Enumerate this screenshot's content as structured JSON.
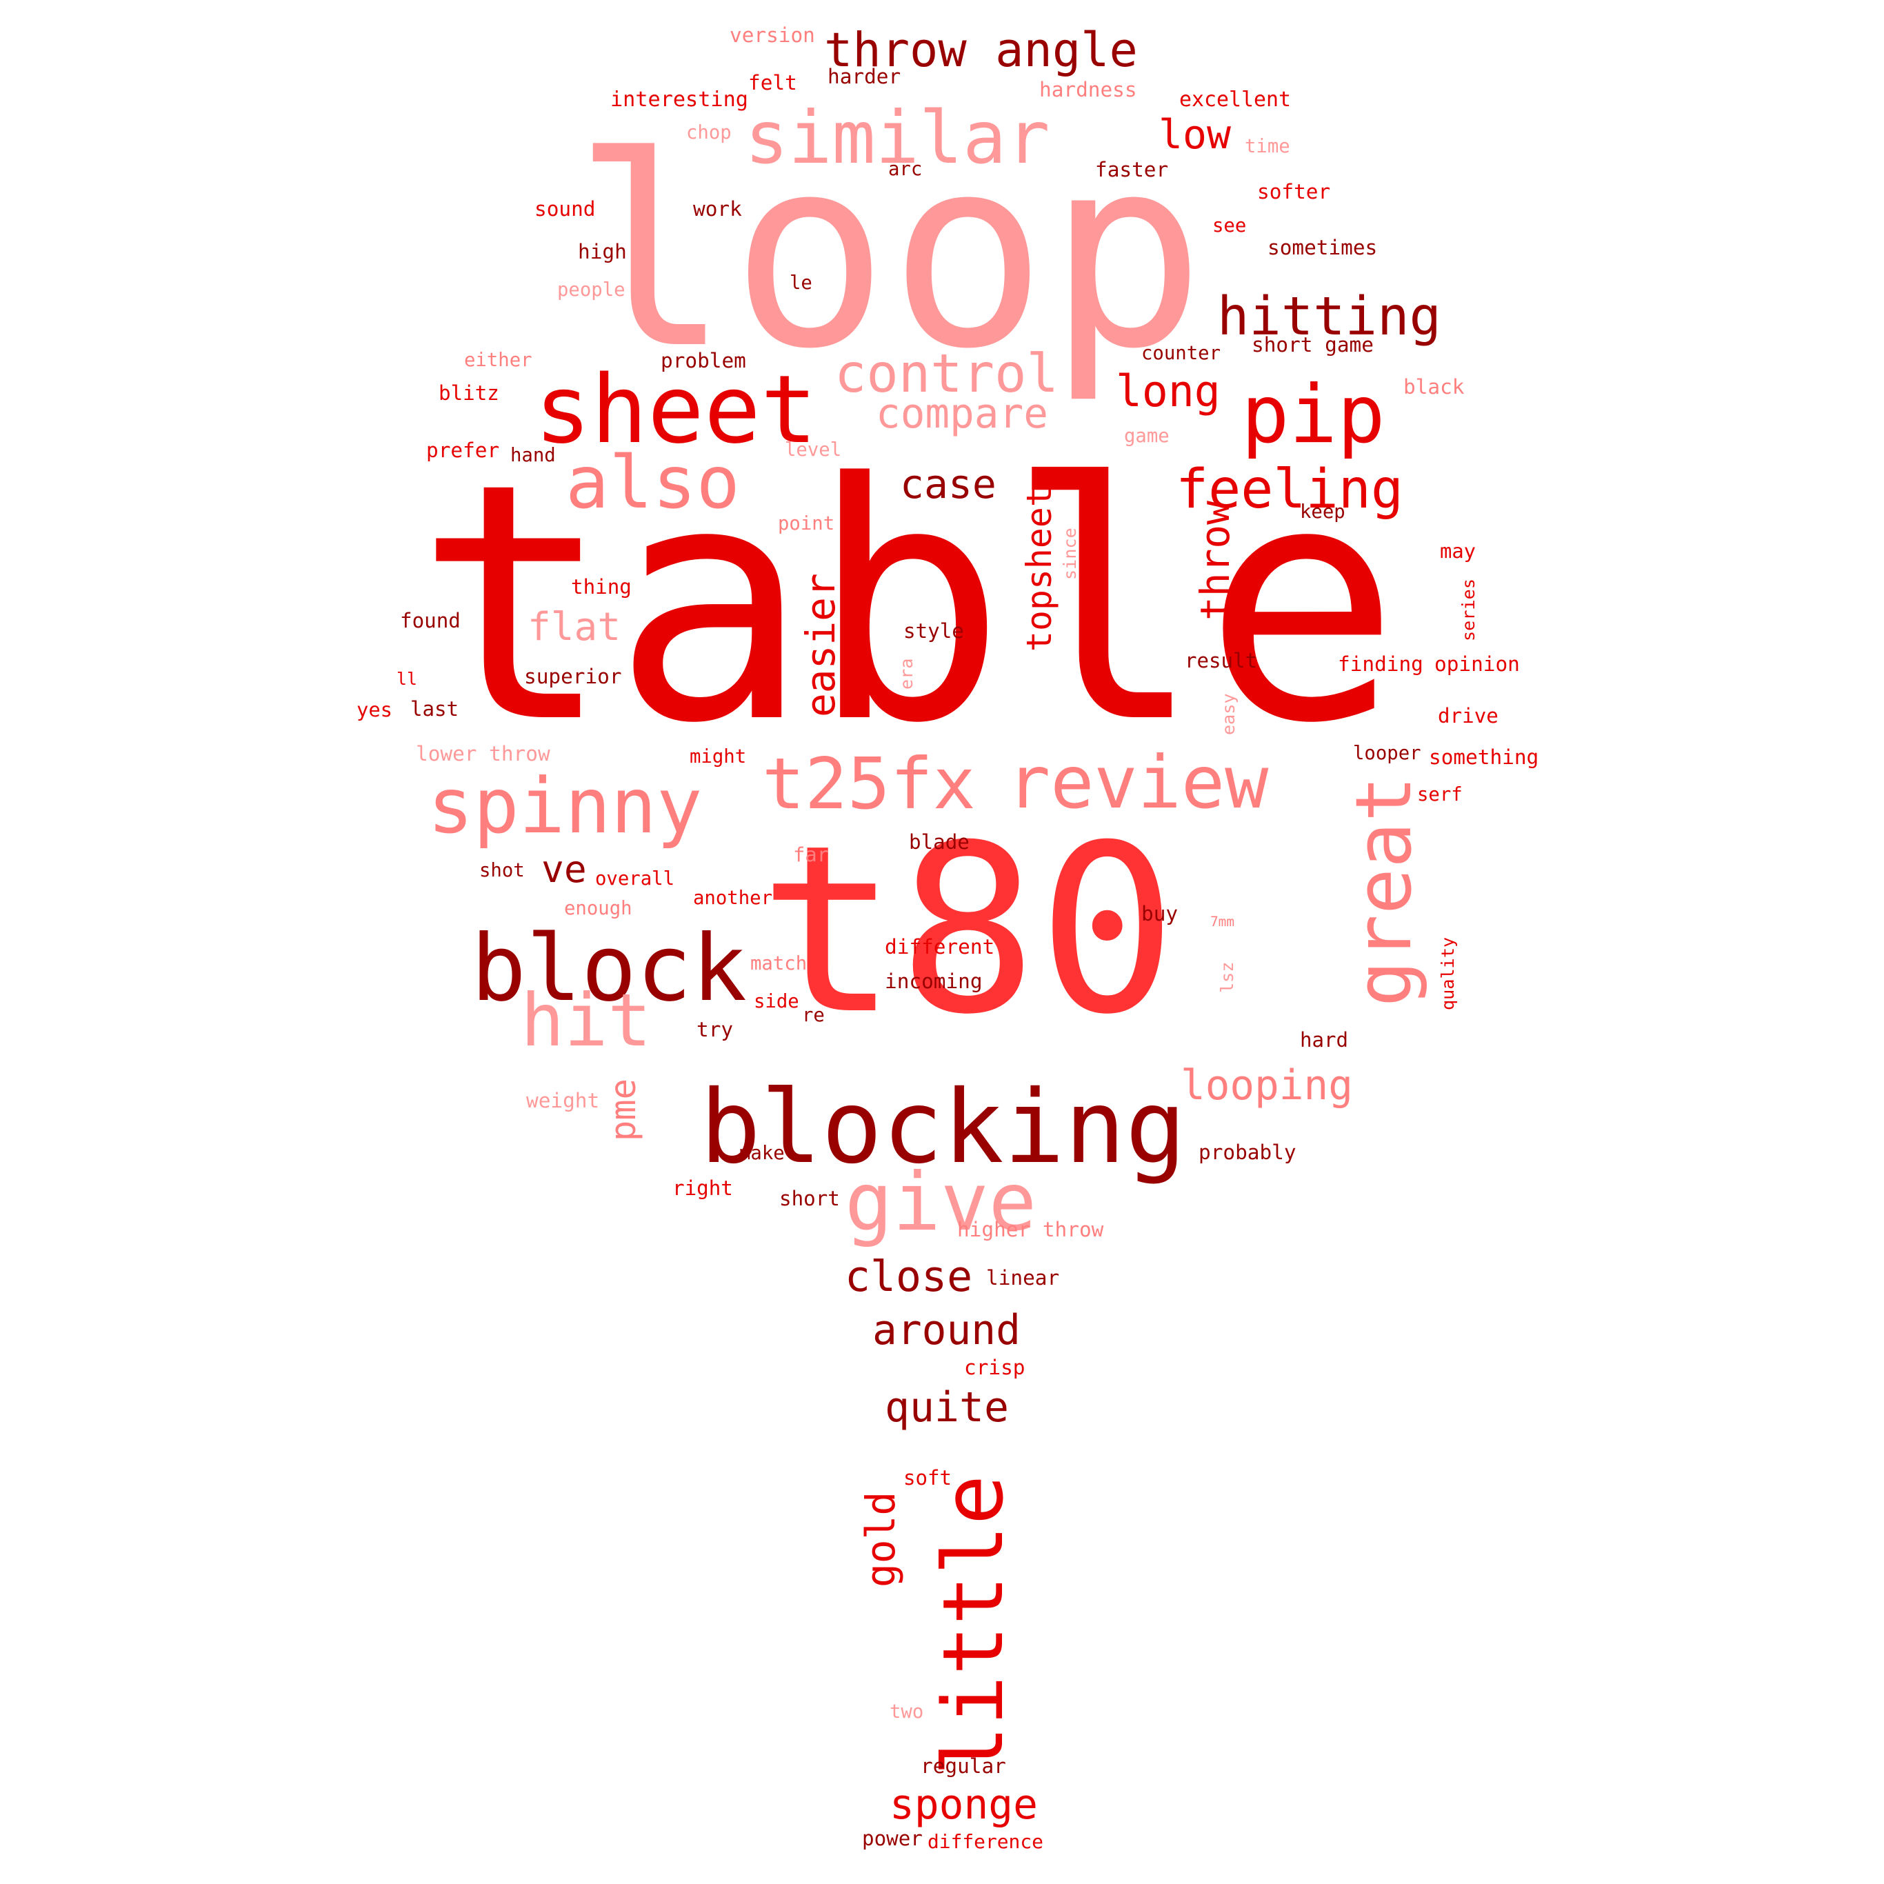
{
  "colors": {
    "dark_red": "#990000",
    "red": "#e60000",
    "bright_red": "#ff3333",
    "salmon": "#ff7f7f",
    "light_pink": "#ff9999"
  },
  "words": [
    {
      "text": "table",
      "color": "red"
    },
    {
      "text": "loop",
      "color": "light_pink"
    },
    {
      "text": "t80",
      "color": "bright_red"
    },
    {
      "text": "blocking",
      "color": "dark_red"
    },
    {
      "text": "block",
      "color": "dark_red"
    },
    {
      "text": "sheet",
      "color": "red"
    },
    {
      "text": "similar",
      "color": "light_pink"
    },
    {
      "text": "pip",
      "color": "red"
    },
    {
      "text": "review",
      "color": "salmon"
    },
    {
      "text": "spinny",
      "color": "salmon"
    },
    {
      "text": "t25fx",
      "color": "salmon"
    },
    {
      "text": "also",
      "color": "salmon"
    },
    {
      "text": "hit",
      "color": "light_pink"
    },
    {
      "text": "give",
      "color": "light_pink"
    },
    {
      "text": "great",
      "color": "salmon"
    },
    {
      "text": "little",
      "color": "red"
    },
    {
      "text": "throw angle",
      "color": "dark_red"
    },
    {
      "text": "control",
      "color": "light_pink"
    },
    {
      "text": "hitting",
      "color": "dark_red"
    },
    {
      "text": "feeling",
      "color": "red"
    },
    {
      "text": "looping",
      "color": "salmon"
    },
    {
      "text": "flat",
      "color": "light_pink"
    },
    {
      "text": "long",
      "color": "red"
    },
    {
      "text": "low",
      "color": "red"
    },
    {
      "text": "compare",
      "color": "light_pink"
    },
    {
      "text": "case",
      "color": "dark_red"
    },
    {
      "text": "throw",
      "color": "red"
    },
    {
      "text": "topsheet",
      "color": "red"
    },
    {
      "text": "easier",
      "color": "red"
    },
    {
      "text": "close",
      "color": "dark_red"
    },
    {
      "text": "around",
      "color": "dark_red"
    },
    {
      "text": "quite",
      "color": "dark_red"
    },
    {
      "text": "sponge",
      "color": "red"
    },
    {
      "text": "gold",
      "color": "red"
    },
    {
      "text": "ve",
      "color": "dark_red"
    },
    {
      "text": "pme",
      "color": "salmon"
    },
    {
      "text": "version",
      "color": "salmon"
    },
    {
      "text": "felt",
      "color": "red"
    },
    {
      "text": "harder",
      "color": "dark_red"
    },
    {
      "text": "hardness",
      "color": "salmon"
    },
    {
      "text": "excellent",
      "color": "red"
    },
    {
      "text": "interesting",
      "color": "red"
    },
    {
      "text": "chop",
      "color": "light_pink"
    },
    {
      "text": "time",
      "color": "light_pink"
    },
    {
      "text": "arc",
      "color": "dark_red"
    },
    {
      "text": "faster",
      "color": "dark_red"
    },
    {
      "text": "softer",
      "color": "red"
    },
    {
      "text": "sound",
      "color": "red"
    },
    {
      "text": "work",
      "color": "dark_red"
    },
    {
      "text": "see",
      "color": "red"
    },
    {
      "text": "sometimes",
      "color": "dark_red"
    },
    {
      "text": "high",
      "color": "dark_red"
    },
    {
      "text": "le",
      "color": "dark_red"
    },
    {
      "text": "people",
      "color": "light_pink"
    },
    {
      "text": "either",
      "color": "salmon"
    },
    {
      "text": "problem",
      "color": "dark_red"
    },
    {
      "text": "counter",
      "color": "dark_red"
    },
    {
      "text": "short game",
      "color": "dark_red"
    },
    {
      "text": "black",
      "color": "salmon"
    },
    {
      "text": "blitz",
      "color": "red"
    },
    {
      "text": "game",
      "color": "light_pink"
    },
    {
      "text": "prefer",
      "color": "red"
    },
    {
      "text": "hand",
      "color": "dark_red"
    },
    {
      "text": "level",
      "color": "light_pink"
    },
    {
      "text": "keep",
      "color": "dark_red"
    },
    {
      "text": "point",
      "color": "salmon"
    },
    {
      "text": "since",
      "color": "light_pink"
    },
    {
      "text": "may",
      "color": "red"
    },
    {
      "text": "thing",
      "color": "red"
    },
    {
      "text": "series",
      "color": "red"
    },
    {
      "text": "found",
      "color": "dark_red"
    },
    {
      "text": "style",
      "color": "dark_red"
    },
    {
      "text": "result",
      "color": "dark_red"
    },
    {
      "text": "finding",
      "color": "red"
    },
    {
      "text": "opinion",
      "color": "red"
    },
    {
      "text": "era",
      "color": "light_pink"
    },
    {
      "text": "ll",
      "color": "red"
    },
    {
      "text": "superior",
      "color": "dark_red"
    },
    {
      "text": "yes",
      "color": "red"
    },
    {
      "text": "last",
      "color": "dark_red"
    },
    {
      "text": "easy",
      "color": "light_pink"
    },
    {
      "text": "drive",
      "color": "red"
    },
    {
      "text": "lower throw",
      "color": "light_pink"
    },
    {
      "text": "might",
      "color": "red"
    },
    {
      "text": "looper",
      "color": "dark_red"
    },
    {
      "text": "something",
      "color": "red"
    },
    {
      "text": "serf",
      "color": "red"
    },
    {
      "text": "far",
      "color": "salmon"
    },
    {
      "text": "blade",
      "color": "dark_red"
    },
    {
      "text": "shot",
      "color": "dark_red"
    },
    {
      "text": "overall",
      "color": "red"
    },
    {
      "text": "another",
      "color": "red"
    },
    {
      "text": "enough",
      "color": "salmon"
    },
    {
      "text": "buy",
      "color": "dark_red"
    },
    {
      "text": "7mm",
      "color": "salmon"
    },
    {
      "text": "lsz",
      "color": "light_pink"
    },
    {
      "text": "quality",
      "color": "red"
    },
    {
      "text": "different",
      "color": "red"
    },
    {
      "text": "match",
      "color": "salmon"
    },
    {
      "text": "incoming",
      "color": "dark_red"
    },
    {
      "text": "side",
      "color": "red"
    },
    {
      "text": "re",
      "color": "dark_red"
    },
    {
      "text": "try",
      "color": "dark_red"
    },
    {
      "text": "hard",
      "color": "dark_red"
    },
    {
      "text": "weight",
      "color": "light_pink"
    },
    {
      "text": "make",
      "color": "dark_red"
    },
    {
      "text": "probably",
      "color": "dark_red"
    },
    {
      "text": "right",
      "color": "red"
    },
    {
      "text": "short",
      "color": "dark_red"
    },
    {
      "text": "higher throw",
      "color": "salmon"
    },
    {
      "text": "linear",
      "color": "dark_red"
    },
    {
      "text": "crisp",
      "color": "red"
    },
    {
      "text": "soft",
      "color": "red"
    },
    {
      "text": "two",
      "color": "light_pink"
    },
    {
      "text": "regular",
      "color": "dark_red"
    },
    {
      "text": "power",
      "color": "dark_red"
    },
    {
      "text": "difference",
      "color": "red"
    }
  ]
}
